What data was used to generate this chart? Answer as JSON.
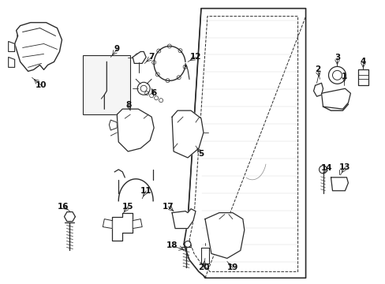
{
  "background_color": "#ffffff",
  "fig_width": 4.89,
  "fig_height": 3.6,
  "dpi": 100,
  "lc": "#2a2a2a",
  "lw_main": 1.0,
  "lw_thin": 0.6,
  "lw_dash": 0.7
}
